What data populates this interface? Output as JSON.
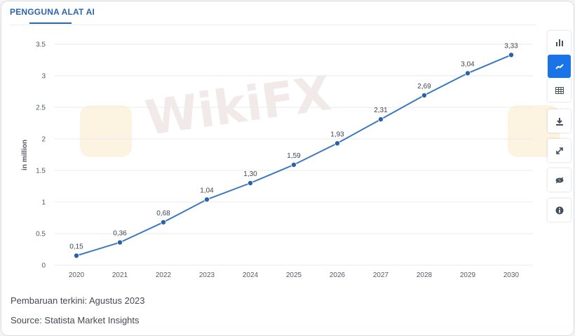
{
  "header": {
    "title": "PENGGUNA ALAT AI"
  },
  "watermark": {
    "text": "WikiFX"
  },
  "chart_data": {
    "type": "line",
    "title": "",
    "xlabel": "",
    "ylabel": "in million",
    "x": [
      "2020",
      "2021",
      "2022",
      "2023",
      "2024",
      "2025",
      "2026",
      "2027",
      "2028",
      "2029",
      "2030"
    ],
    "series": [
      {
        "values": [
          0.15,
          0.36,
          0.68,
          1.04,
          1.3,
          1.59,
          1.93,
          2.31,
          2.69,
          3.04,
          3.33
        ]
      }
    ],
    "data_labels": [
      "0,15",
      "0,36",
      "0,68",
      "1,04",
      "1,30",
      "1,59",
      "1,93",
      "2,31",
      "2,69",
      "3,04",
      "3,33"
    ],
    "yticks": [
      0,
      0.5,
      1,
      1.5,
      2,
      2.5,
      3,
      3.5
    ],
    "ytick_labels": [
      "0",
      "0.5",
      "1",
      "1.5",
      "2",
      "2.5",
      "3",
      "3.5"
    ],
    "ylim": [
      0,
      3.5
    ],
    "grid": true,
    "colors": {
      "line": "#3c78c0",
      "point": "#2a62a8",
      "grid": "#e9ebee"
    }
  },
  "toolbar": {
    "items": [
      {
        "icon": "bar-chart-icon",
        "active": false
      },
      {
        "icon": "line-chart-icon",
        "active": true
      },
      {
        "icon": "table-icon",
        "active": false
      },
      {
        "icon": "download-icon",
        "active": false
      },
      {
        "icon": "fullscreen-icon",
        "active": false
      },
      {
        "icon": "hide-icon",
        "active": false
      },
      {
        "icon": "info-icon",
        "active": false
      }
    ]
  },
  "footer": {
    "updated": "Pembaruan terkini: Agustus 2023",
    "source": "Source: Statista Market Insights"
  }
}
